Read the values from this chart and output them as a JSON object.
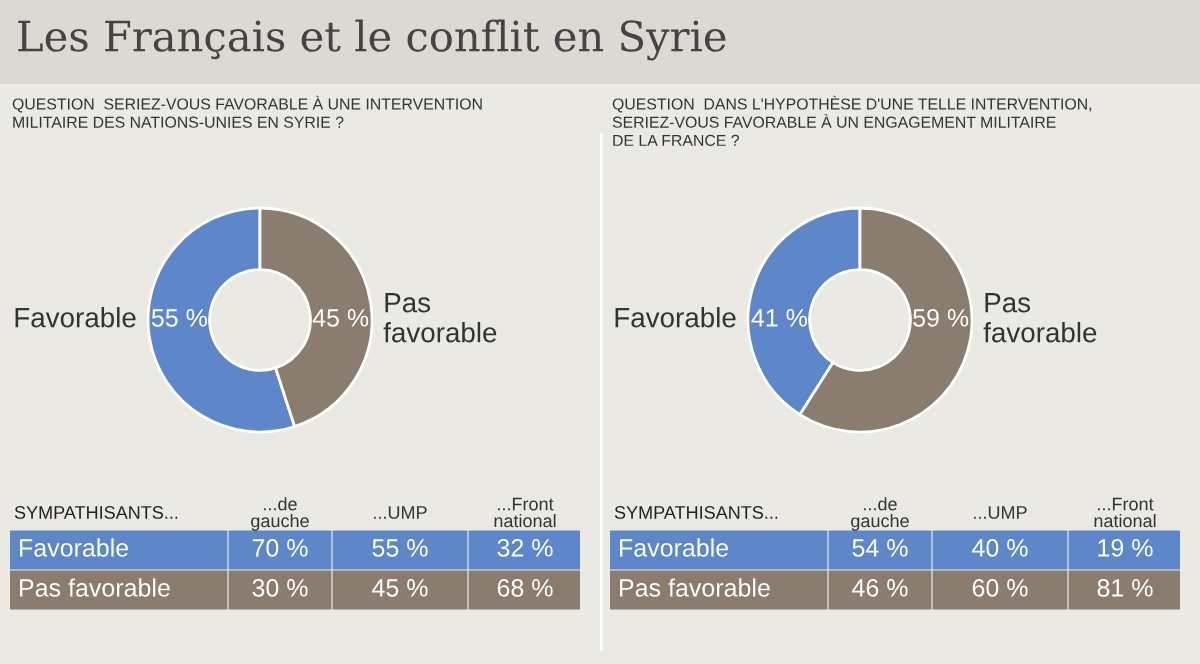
{
  "chart_data": [
    {
      "type": "donut",
      "title": "Les Français et le conflit en Syrie",
      "subtitle": "QUESTION  SERIEZ-VOUS FAVORABLE À UNE INTERVENTION\nMILITAIRE DES NATIONS-UNIES EN SYRIE ?",
      "categories": [
        "Favorable",
        "Pas\nfavorable"
      ],
      "values": [
        55,
        45
      ],
      "value_labels": [
        "55 %",
        "45 %"
      ],
      "colors": [
        "#5e87c9",
        "#8a7d70"
      ]
    },
    {
      "type": "other",
      "title": "SYMPATHISANTS...",
      "categories": [
        "...de\ngauche",
        "...UMP",
        "...Front\nnational"
      ],
      "series": [
        {
          "name": "Favorable",
          "color": "#5e87c9",
          "values": [
            70,
            55,
            32
          ],
          "value_labels": [
            "70 %",
            "55 %",
            "32 %"
          ]
        },
        {
          "name": "Pas favorable",
          "color": "#8a7d70",
          "values": [
            30,
            45,
            68
          ],
          "value_labels": [
            "30 %",
            "45 %",
            "68 %"
          ]
        }
      ]
    },
    {
      "type": "donut",
      "subtitle": "QUESTION  DANS L'HYPOTHÈSE D'UNE TELLE INTERVENTION,\nSERIEZ-VOUS FAVORABLE À UN ENGAGEMENT MILITAIRE\nDE LA FRANCE ?",
      "categories": [
        "Favorable",
        "Pas\nfavorable"
      ],
      "values": [
        41,
        59
      ],
      "value_labels": [
        "41 %",
        "59 %"
      ],
      "colors": [
        "#5e87c9",
        "#8a7d70"
      ]
    },
    {
      "type": "other",
      "title": "SYMPATHISANTS...",
      "categories": [
        "...de\ngauche",
        "...UMP",
        "...Front\nnational"
      ],
      "series": [
        {
          "name": "Favorable",
          "color": "#5e87c9",
          "values": [
            54,
            40,
            19
          ],
          "value_labels": [
            "54 %",
            "40 %",
            "19 %"
          ]
        },
        {
          "name": "Pas favorable",
          "color": "#8a7d70",
          "values": [
            46,
            60,
            81
          ],
          "value_labels": [
            "46 %",
            "60 %",
            "81 %"
          ]
        }
      ]
    }
  ]
}
